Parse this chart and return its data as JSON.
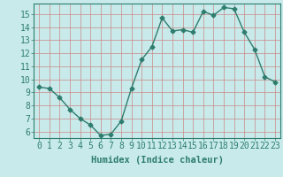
{
  "x": [
    0,
    1,
    2,
    3,
    4,
    5,
    6,
    7,
    8,
    9,
    10,
    11,
    12,
    13,
    14,
    15,
    16,
    17,
    18,
    19,
    20,
    21,
    22,
    23
  ],
  "y": [
    9.4,
    9.3,
    8.6,
    7.7,
    7.0,
    6.5,
    5.7,
    5.8,
    6.8,
    9.3,
    11.5,
    12.5,
    14.7,
    13.7,
    13.8,
    13.6,
    15.2,
    14.9,
    15.5,
    15.4,
    13.6,
    12.3,
    10.2,
    9.8
  ],
  "line_color": "#2e7d6e",
  "marker": "D",
  "marker_size": 2.5,
  "bg_color": "#c8eaea",
  "grid_color_major": "#cc8888",
  "grid_color_minor": "#cc8888",
  "xlabel": "Humidex (Indice chaleur)",
  "ylabel_ticks": [
    6,
    7,
    8,
    9,
    10,
    11,
    12,
    13,
    14,
    15
  ],
  "xlim": [
    -0.5,
    23.5
  ],
  "ylim": [
    5.5,
    15.8
  ],
  "xlabel_fontsize": 7.5,
  "tick_fontsize": 7,
  "linewidth": 1.0
}
